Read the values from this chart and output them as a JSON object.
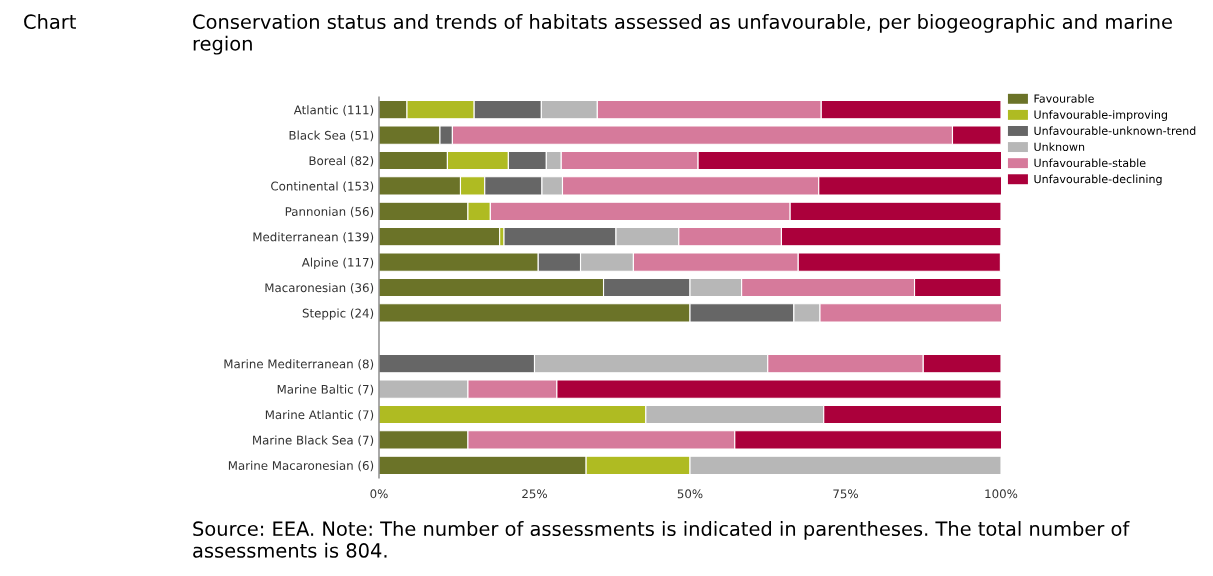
{
  "chart_data": {
    "type": "bar",
    "orientation": "horizontal",
    "stacked": true,
    "title": "Conservation status and trends of habitats assessed as unfavourable, per biogeographic and marine region",
    "annotations": [
      "Chart",
      "Source: EEA. Note: The number of assessments is indicated in parentheses. The total number of assessments is 804."
    ],
    "categories": [
      "Atlantic (111)",
      "Black Sea (51)",
      "Boreal (82)",
      "Continental (153)",
      "Pannonian (56)",
      "Mediterranean (139)",
      "Alpine (117)",
      "Macaronesian (36)",
      "Steppic (24)",
      null,
      "Marine Mediterranean (8)",
      "Marine Baltic (7)",
      "Marine Atlantic (7)",
      "Marine Black Sea (7)",
      "Marine Macaronesian (6)"
    ],
    "series": [
      {
        "name": "Favourable",
        "color": "#6b7328",
        "values": [
          4.5,
          9.8,
          11.0,
          13.1,
          14.3,
          19.4,
          25.6,
          36.1,
          50.0,
          null,
          0,
          0,
          0,
          14.3,
          33.3
        ]
      },
      {
        "name": "Unfavourable-improving",
        "color": "#afbb22",
        "values": [
          10.8,
          0,
          9.8,
          3.9,
          3.6,
          0.7,
          0,
          0,
          0,
          null,
          0,
          0,
          42.9,
          0,
          16.7
        ]
      },
      {
        "name": "Unfavourable-unknown-trend",
        "color": "#666666",
        "values": [
          10.8,
          2.0,
          6.1,
          9.2,
          0,
          18.0,
          6.8,
          13.9,
          16.7,
          null,
          25.0,
          0,
          0,
          0,
          0
        ]
      },
      {
        "name": "Unknown",
        "color": "#b7b7b7",
        "values": [
          9.0,
          0,
          2.4,
          3.3,
          0,
          10.1,
          8.5,
          8.3,
          4.2,
          null,
          37.5,
          14.3,
          28.6,
          0,
          50.0
        ]
      },
      {
        "name": "Unfavourable-stable",
        "color": "#d67a9b",
        "values": [
          36.0,
          80.4,
          22.0,
          41.2,
          48.2,
          16.5,
          26.5,
          27.8,
          29.2,
          null,
          25.0,
          14.3,
          0,
          42.9,
          0
        ]
      },
      {
        "name": "Unfavourable-declining",
        "color": "#ab003b",
        "values": [
          28.9,
          7.8,
          48.8,
          29.4,
          33.9,
          35.3,
          32.5,
          13.9,
          0,
          null,
          12.5,
          71.4,
          28.6,
          42.9,
          0
        ]
      }
    ],
    "xlim": [
      0,
      100
    ],
    "xticks": [
      {
        "value": 0,
        "label": "0%"
      },
      {
        "value": 25,
        "label": "25%"
      },
      {
        "value": 50,
        "label": "50%"
      },
      {
        "value": 75,
        "label": "75%"
      },
      {
        "value": 100,
        "label": "100%"
      }
    ],
    "grid": false,
    "legend": "top right"
  }
}
